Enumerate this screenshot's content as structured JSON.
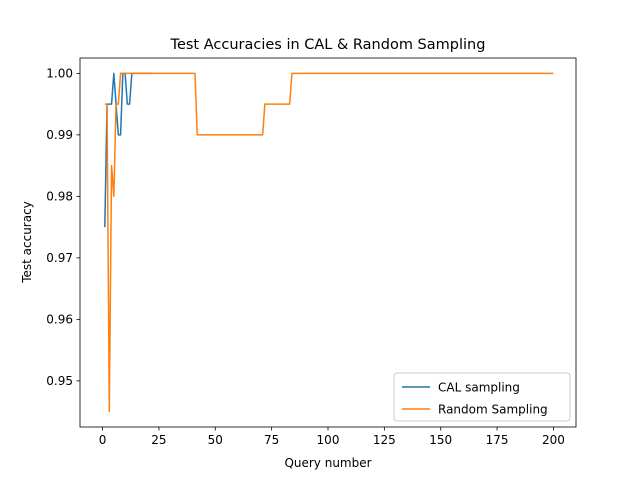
{
  "chart_data": {
    "type": "line",
    "title": "Test Accuracies in CAL & Random Sampling",
    "xlabel": "Query number",
    "ylabel": "Test accuracy",
    "xlim": [
      -10,
      210
    ],
    "ylim": [
      0.9425,
      1.0025
    ],
    "xticks": [
      0,
      25,
      50,
      75,
      100,
      125,
      150,
      175,
      200
    ],
    "yticks": [
      0.95,
      0.96,
      0.97,
      0.98,
      0.99,
      1.0
    ],
    "ytick_labels": [
      "0.95",
      "0.96",
      "0.97",
      "0.98",
      "0.99",
      "1.00"
    ],
    "grid": false,
    "legend_position": "lower-right",
    "series": [
      {
        "name": "CAL sampling",
        "color": "#1f77b4",
        "x": [
          1,
          2,
          3,
          4,
          5,
          6,
          7,
          8,
          9,
          10,
          11,
          12,
          13,
          14,
          15,
          16,
          17,
          18,
          19,
          20,
          21,
          22
        ],
        "y": [
          0.975,
          0.995,
          0.995,
          0.995,
          1.0,
          0.995,
          0.99,
          0.99,
          1.0,
          1.0,
          0.995,
          0.995,
          1.0,
          1.0,
          1.0,
          1.0,
          1.0,
          1.0,
          1.0,
          1.0,
          1.0,
          1.0
        ]
      },
      {
        "name": "Random Sampling",
        "color": "#ff7f0e",
        "x": [
          1,
          2,
          3,
          4,
          5,
          6,
          7,
          8,
          10,
          20,
          30,
          41,
          42,
          50,
          60,
          71,
          72,
          80,
          83,
          84,
          100,
          150,
          200
        ],
        "y": [
          0.995,
          0.995,
          0.945,
          0.985,
          0.98,
          0.995,
          0.995,
          1.0,
          1.0,
          1.0,
          1.0,
          1.0,
          0.99,
          0.99,
          0.99,
          0.99,
          0.995,
          0.995,
          0.995,
          1.0,
          1.0,
          1.0,
          1.0
        ]
      }
    ]
  }
}
